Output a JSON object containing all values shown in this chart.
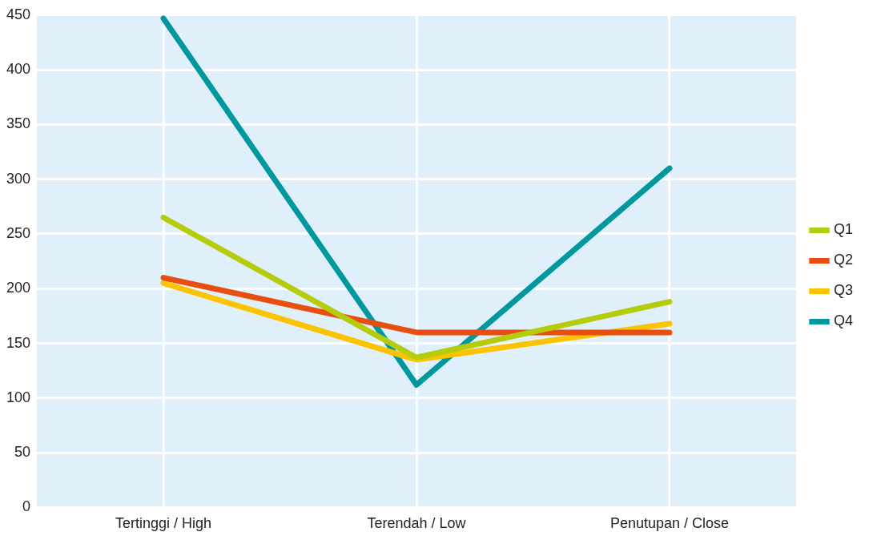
{
  "chart_data": {
    "type": "line",
    "categories": [
      "Tertinggi / High",
      "Terendah / Low",
      "Penutupan / Close"
    ],
    "series": [
      {
        "name": "Q1",
        "color": "#b5cc0c",
        "values": [
          265,
          137,
          188
        ]
      },
      {
        "name": "Q2",
        "color": "#e84e0f",
        "values": [
          210,
          160,
          160
        ]
      },
      {
        "name": "Q3",
        "color": "#fbc300",
        "values": [
          205,
          135,
          168
        ]
      },
      {
        "name": "Q4",
        "color": "#00989e",
        "values": [
          447,
          112,
          310
        ]
      }
    ],
    "ylim": [
      0,
      450
    ],
    "yticks": [
      0,
      50,
      100,
      150,
      200,
      250,
      300,
      350,
      400,
      450
    ],
    "grid": true,
    "legend": "right",
    "marker": "none",
    "line_style": "solid"
  }
}
